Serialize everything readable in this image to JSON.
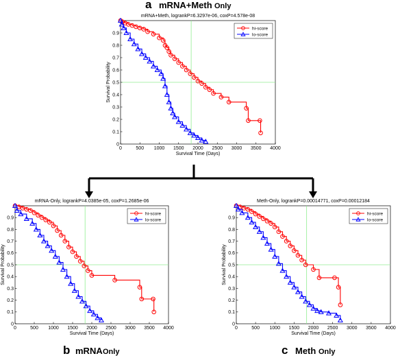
{
  "figure": {
    "arrow_color": "#000000"
  },
  "chart_data": [
    {
      "id": "a",
      "type": "line",
      "panel_letter": "a",
      "panel_title_main": "mRNA+Meth",
      "panel_title_sub": "Only",
      "title": "mRNA+Meth, logrankP=6.3297e-06, coxP=4.578e-08",
      "xlabel": "Survival Time (Days)",
      "ylabel": "Survival Probability",
      "xlim": [
        0,
        4000
      ],
      "ylim": [
        0,
        1
      ],
      "xticks": [
        0,
        500,
        1000,
        1500,
        2000,
        2500,
        3000,
        3500,
        4000
      ],
      "yticks": [
        0,
        0.1,
        0.2,
        0.3,
        0.4,
        0.5,
        0.6,
        0.7,
        0.8,
        0.9
      ],
      "reference_lines": {
        "x": 1825,
        "y": 0.5,
        "color": "#90ee90"
      },
      "legend_position": "top-right",
      "series": [
        {
          "name": "hi-score",
          "color": "#ff0000",
          "marker": "circle",
          "x": [
            0,
            50,
            120,
            200,
            300,
            400,
            500,
            600,
            700,
            850,
            1000,
            1100,
            1150,
            1200,
            1250,
            1300,
            1400,
            1500,
            1600,
            1700,
            1800,
            1900,
            2000,
            2100,
            2200,
            2300,
            2400,
            2600,
            2800,
            3250,
            3300,
            3600,
            3620
          ],
          "y": [
            1.0,
            0.99,
            0.98,
            0.97,
            0.96,
            0.95,
            0.94,
            0.93,
            0.91,
            0.89,
            0.86,
            0.84,
            0.8,
            0.78,
            0.75,
            0.72,
            0.69,
            0.66,
            0.63,
            0.6,
            0.57,
            0.54,
            0.51,
            0.49,
            0.46,
            0.44,
            0.41,
            0.38,
            0.34,
            0.29,
            0.19,
            0.19,
            0.09
          ]
        },
        {
          "name": "lo-score",
          "color": "#0000ff",
          "marker": "triangle",
          "x": [
            0,
            30,
            80,
            150,
            250,
            350,
            450,
            550,
            650,
            750,
            850,
            950,
            1050,
            1100,
            1150,
            1200,
            1250,
            1300,
            1350,
            1400,
            1500,
            1600,
            1700,
            1800,
            1900,
            2000,
            2100,
            2200
          ],
          "y": [
            1.0,
            0.97,
            0.94,
            0.9,
            0.85,
            0.81,
            0.77,
            0.73,
            0.7,
            0.67,
            0.63,
            0.6,
            0.57,
            0.53,
            0.47,
            0.4,
            0.34,
            0.29,
            0.25,
            0.22,
            0.18,
            0.15,
            0.12,
            0.09,
            0.07,
            0.05,
            0.03,
            0.02
          ]
        }
      ]
    },
    {
      "id": "b",
      "type": "line",
      "panel_letter": "b",
      "panel_title_main": "mRNA",
      "panel_title_sub": "Only",
      "title": "mRNA-Only, logrankP=4.0385e-05, coxP=1.2685e-06",
      "xlabel": "Survival Time (Days)",
      "ylabel": "Survival Probability",
      "xlim": [
        0,
        4000
      ],
      "ylim": [
        0,
        1
      ],
      "xticks": [
        0,
        500,
        1000,
        1500,
        2000,
        2500,
        3000,
        3500,
        4000
      ],
      "yticks": [
        0,
        0.1,
        0.2,
        0.3,
        0.4,
        0.5,
        0.6,
        0.7,
        0.8,
        0.9
      ],
      "reference_lines": {
        "x": 1825,
        "y": 0.5,
        "color": "#90ee90"
      },
      "legend_position": "top-right",
      "series": [
        {
          "name": "hi-score",
          "color": "#ff0000",
          "marker": "circle",
          "x": [
            0,
            100,
            200,
            300,
            400,
            500,
            600,
            700,
            800,
            900,
            1000,
            1100,
            1200,
            1300,
            1400,
            1500,
            1600,
            1700,
            1800,
            1900,
            2000,
            2600,
            3250,
            3300,
            3600,
            3620
          ],
          "y": [
            1.0,
            0.99,
            0.98,
            0.97,
            0.96,
            0.94,
            0.92,
            0.9,
            0.88,
            0.86,
            0.83,
            0.79,
            0.75,
            0.7,
            0.65,
            0.61,
            0.57,
            0.53,
            0.49,
            0.45,
            0.41,
            0.37,
            0.31,
            0.21,
            0.21,
            0.1
          ]
        },
        {
          "name": "lo-score",
          "color": "#0000ff",
          "marker": "triangle",
          "x": [
            0,
            50,
            150,
            300,
            450,
            550,
            650,
            750,
            850,
            950,
            1050,
            1150,
            1250,
            1350,
            1450,
            1550,
            1650,
            1750,
            1850,
            1950,
            2050,
            2150,
            2250
          ],
          "y": [
            1.0,
            0.96,
            0.93,
            0.89,
            0.85,
            0.8,
            0.75,
            0.7,
            0.66,
            0.62,
            0.57,
            0.52,
            0.46,
            0.4,
            0.34,
            0.28,
            0.23,
            0.19,
            0.15,
            0.11,
            0.08,
            0.05,
            0.03
          ]
        }
      ]
    },
    {
      "id": "c",
      "type": "line",
      "panel_letter": "c",
      "panel_title_main": "Meth",
      "panel_title_sub": "Only",
      "title": "Meth-Only, logrankP=0.00014771, coxP=0.00012184",
      "xlabel": "Survival Time (Days)",
      "ylabel": "Survival Probability",
      "xlim": [
        0,
        4000
      ],
      "ylim": [
        0,
        1
      ],
      "xticks": [
        0,
        500,
        1000,
        1500,
        2000,
        2500,
        3000,
        3500,
        4000
      ],
      "yticks": [
        0,
        0.1,
        0.2,
        0.3,
        0.4,
        0.5,
        0.6,
        0.7,
        0.8,
        0.9
      ],
      "reference_lines": {
        "x": 1825,
        "y": 0.5,
        "color": "#90ee90"
      },
      "legend_position": "top-right",
      "series": [
        {
          "name": "hi-score",
          "color": "#ff0000",
          "marker": "circle",
          "x": [
            0,
            100,
            200,
            300,
            400,
            500,
            600,
            700,
            800,
            900,
            1000,
            1100,
            1200,
            1300,
            1400,
            1500,
            1600,
            1700,
            1800,
            2000,
            2150,
            2550,
            2650,
            2700
          ],
          "y": [
            1.0,
            0.99,
            0.98,
            0.97,
            0.95,
            0.93,
            0.91,
            0.89,
            0.87,
            0.85,
            0.82,
            0.78,
            0.74,
            0.7,
            0.66,
            0.62,
            0.58,
            0.54,
            0.5,
            0.46,
            0.39,
            0.39,
            0.31,
            0.16
          ]
        },
        {
          "name": "lo-score",
          "color": "#0000ff",
          "marker": "triangle",
          "x": [
            0,
            50,
            150,
            300,
            400,
            500,
            600,
            700,
            800,
            900,
            1000,
            1100,
            1200,
            1300,
            1400,
            1500,
            1600,
            1700,
            1800,
            1900,
            2000,
            2100,
            2200,
            2400,
            2600,
            2700
          ],
          "y": [
            1.0,
            0.97,
            0.94,
            0.9,
            0.86,
            0.82,
            0.78,
            0.73,
            0.68,
            0.63,
            0.57,
            0.51,
            0.45,
            0.4,
            0.35,
            0.31,
            0.27,
            0.23,
            0.19,
            0.16,
            0.13,
            0.11,
            0.1,
            0.09,
            0.07,
            0.03
          ]
        }
      ]
    }
  ]
}
